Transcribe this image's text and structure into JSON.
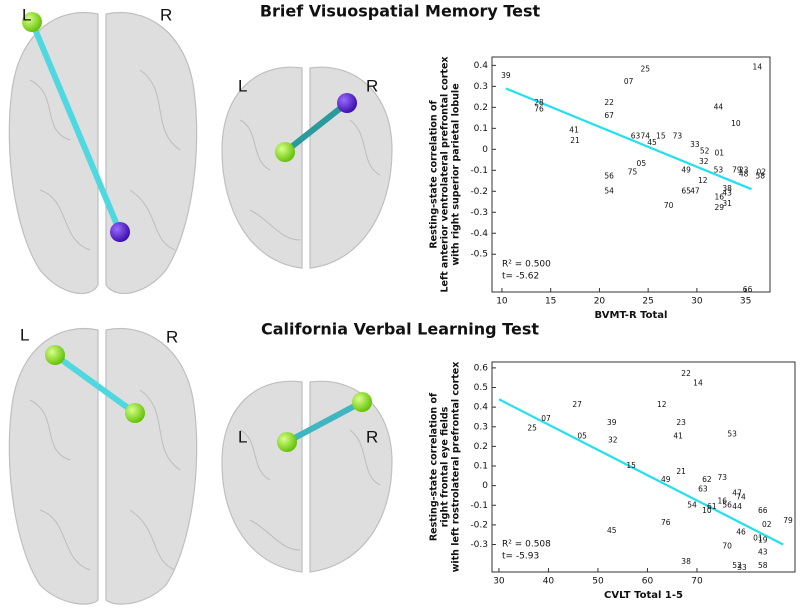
{
  "hemisphere_labels": [
    "L",
    "R"
  ],
  "chart_data": [
    {
      "type": "scatter",
      "title": "Brief Visuospatial Memory Test",
      "xlabel": "BVMT-R Total",
      "ylabel": [
        "Resting-state correlation of",
        "Left anterior ventrolateral prefrontal cortex",
        "with  right superior parietal lobule"
      ],
      "xlim": [
        8.98,
        37.5
      ],
      "ylim": [
        -0.68,
        0.44
      ],
      "xticks": [
        10,
        15,
        20,
        25,
        30,
        35
      ],
      "yticks": [
        0.4,
        0.3,
        0.2,
        0.1,
        0,
        -0.1,
        -0.2,
        -0.3,
        -0.4,
        -0.5
      ],
      "point_labels": [
        "39",
        "25",
        "07",
        "14",
        "28",
        "76",
        "22",
        "44",
        "67",
        "10",
        "41",
        "63",
        "74",
        "15",
        "73",
        "21",
        "45",
        "33",
        "52",
        "01",
        "32",
        "05",
        "49",
        "75",
        "53",
        "79",
        "23",
        "02",
        "48",
        "58",
        "56",
        "12",
        "38",
        "43",
        "54",
        "65",
        "47",
        "16",
        "70",
        "31",
        "29",
        "66"
      ],
      "x": [
        10.4,
        24.7,
        23.0,
        36.2,
        13.8,
        13.8,
        21.0,
        32.2,
        21.0,
        34.0,
        17.4,
        23.7,
        24.7,
        26.3,
        28.0,
        17.5,
        25.4,
        29.8,
        30.8,
        32.3,
        30.7,
        24.3,
        28.9,
        23.4,
        32.2,
        34.1,
        34.8,
        36.6,
        34.8,
        36.5,
        21.0,
        30.6,
        33.1,
        33.1,
        21.0,
        28.9,
        29.8,
        32.3,
        27.1,
        33.1,
        32.3,
        35.2
      ],
      "values": [
        0.35,
        0.38,
        0.32,
        0.39,
        0.22,
        0.19,
        0.22,
        0.2,
        0.16,
        0.12,
        0.09,
        0.06,
        0.06,
        0.06,
        0.06,
        0.04,
        0.03,
        0.02,
        -0.01,
        -0.02,
        -0.06,
        -0.07,
        -0.1,
        -0.11,
        -0.1,
        -0.1,
        -0.1,
        -0.11,
        -0.12,
        -0.13,
        -0.13,
        -0.15,
        -0.19,
        -0.21,
        -0.2,
        -0.2,
        -0.2,
        -0.23,
        -0.27,
        -0.26,
        -0.28,
        -0.67
      ],
      "fit_line": {
        "x": [
          10.4,
          35.6
        ],
        "y": [
          0.29,
          -0.19
        ],
        "color": "#22e0ee"
      },
      "annotations": [
        "R² = 0.500",
        "t= -5.62"
      ]
    },
    {
      "type": "scatter",
      "title": "California Verbal Learning Test",
      "xlabel": "CVLT Total 1-5",
      "ylabel": [
        "Resting-state correlation of",
        "right frontal eye fields",
        "with left rostrolateral prefrontal cortex"
      ],
      "xlim": [
        28.6,
        89.8
      ],
      "ylim": [
        -0.44,
        0.63
      ],
      "xticks": [
        30,
        40,
        50,
        60,
        70
      ],
      "yticks": [
        0.6,
        0.5,
        0.4,
        0.3,
        0.2,
        0.1,
        0,
        -0.1,
        -0.2,
        -0.3
      ],
      "point_labels": [
        "22",
        "14",
        "27",
        "12",
        "07",
        "25",
        "39",
        "23",
        "05",
        "32",
        "41",
        "53",
        "15",
        "21",
        "62",
        "73",
        "49",
        "63",
        "47",
        "74",
        "16",
        "56",
        "54",
        "61",
        "10",
        "44",
        "66",
        "76",
        "02",
        "79",
        "45",
        "46",
        "01",
        "19",
        "70",
        "43",
        "38",
        "52",
        "33",
        "58"
      ],
      "x": [
        67.8,
        70.2,
        45.8,
        62.9,
        39.5,
        36.7,
        52.8,
        66.8,
        46.8,
        53.0,
        66.2,
        77.1,
        56.7,
        66.8,
        72.0,
        75.1,
        63.7,
        71.2,
        78.1,
        78.9,
        75.1,
        76.1,
        69.0,
        73.0,
        72.0,
        78.1,
        83.3,
        63.7,
        84.1,
        88.4,
        52.8,
        78.9,
        82.3,
        83.3,
        76.1,
        83.3,
        67.8,
        78.1,
        79.1,
        83.3
      ],
      "values": [
        0.57,
        0.52,
        0.41,
        0.41,
        0.34,
        0.29,
        0.32,
        0.32,
        0.25,
        0.23,
        0.25,
        0.26,
        0.1,
        0.07,
        0.03,
        0.04,
        0.03,
        -0.02,
        -0.04,
        -0.06,
        -0.08,
        -0.1,
        -0.1,
        -0.11,
        -0.13,
        -0.11,
        -0.13,
        -0.19,
        -0.2,
        -0.18,
        -0.23,
        -0.24,
        -0.27,
        -0.28,
        -0.31,
        -0.34,
        -0.39,
        -0.41,
        -0.42,
        -0.41
      ],
      "fit_line": {
        "x": [
          30,
          87.4
        ],
        "y": [
          0.44,
          -0.3
        ],
        "color": "#22e0ee"
      },
      "annotations": [
        "R² = 0.508",
        "t= -5.93"
      ]
    }
  ]
}
